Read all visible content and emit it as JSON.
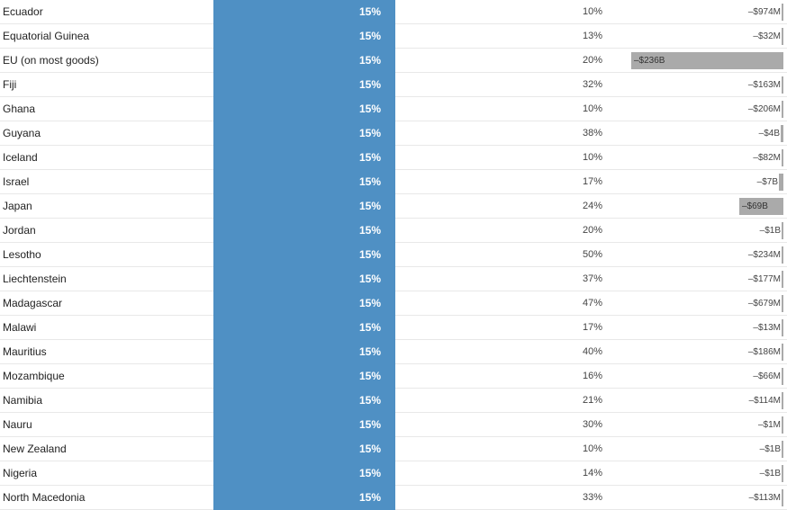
{
  "colors": {
    "rate_cell": "#4f90c4",
    "deficit_bar": "#aaaaaa",
    "divider": "#e8e8e8"
  },
  "chart_data": {
    "type": "table",
    "deficit_max_billions": 236,
    "rows": [
      {
        "country": "Ecuador",
        "rate": "15%",
        "previous": "10%",
        "deficit": "–$974M",
        "deficit_billions": 0.974
      },
      {
        "country": "Equatorial Guinea",
        "rate": "15%",
        "previous": "13%",
        "deficit": "–$32M",
        "deficit_billions": 0.032
      },
      {
        "country": "EU (on most goods)",
        "rate": "15%",
        "previous": "20%",
        "deficit": "–$236B",
        "deficit_billions": 236
      },
      {
        "country": "Fiji",
        "rate": "15%",
        "previous": "32%",
        "deficit": "–$163M",
        "deficit_billions": 0.163
      },
      {
        "country": "Ghana",
        "rate": "15%",
        "previous": "10%",
        "deficit": "–$206M",
        "deficit_billions": 0.206
      },
      {
        "country": "Guyana",
        "rate": "15%",
        "previous": "38%",
        "deficit": "–$4B",
        "deficit_billions": 4
      },
      {
        "country": "Iceland",
        "rate": "15%",
        "previous": "10%",
        "deficit": "–$82M",
        "deficit_billions": 0.082
      },
      {
        "country": "Israel",
        "rate": "15%",
        "previous": "17%",
        "deficit": "–$7B",
        "deficit_billions": 7
      },
      {
        "country": "Japan",
        "rate": "15%",
        "previous": "24%",
        "deficit": "–$69B",
        "deficit_billions": 69
      },
      {
        "country": "Jordan",
        "rate": "15%",
        "previous": "20%",
        "deficit": "–$1B",
        "deficit_billions": 1
      },
      {
        "country": "Lesotho",
        "rate": "15%",
        "previous": "50%",
        "deficit": "–$234M",
        "deficit_billions": 0.234
      },
      {
        "country": "Liechtenstein",
        "rate": "15%",
        "previous": "37%",
        "deficit": "–$177M",
        "deficit_billions": 0.177
      },
      {
        "country": "Madagascar",
        "rate": "15%",
        "previous": "47%",
        "deficit": "–$679M",
        "deficit_billions": 0.679
      },
      {
        "country": "Malawi",
        "rate": "15%",
        "previous": "17%",
        "deficit": "–$13M",
        "deficit_billions": 0.013
      },
      {
        "country": "Mauritius",
        "rate": "15%",
        "previous": "40%",
        "deficit": "–$186M",
        "deficit_billions": 0.186
      },
      {
        "country": "Mozambique",
        "rate": "15%",
        "previous": "16%",
        "deficit": "–$66M",
        "deficit_billions": 0.066
      },
      {
        "country": "Namibia",
        "rate": "15%",
        "previous": "21%",
        "deficit": "–$114M",
        "deficit_billions": 0.114
      },
      {
        "country": "Nauru",
        "rate": "15%",
        "previous": "30%",
        "deficit": "–$1M",
        "deficit_billions": 0.001
      },
      {
        "country": "New Zealand",
        "rate": "15%",
        "previous": "10%",
        "deficit": "–$1B",
        "deficit_billions": 1
      },
      {
        "country": "Nigeria",
        "rate": "15%",
        "previous": "14%",
        "deficit": "–$1B",
        "deficit_billions": 1
      },
      {
        "country": "North Macedonia",
        "rate": "15%",
        "previous": "33%",
        "deficit": "–$113M",
        "deficit_billions": 0.113
      }
    ]
  }
}
